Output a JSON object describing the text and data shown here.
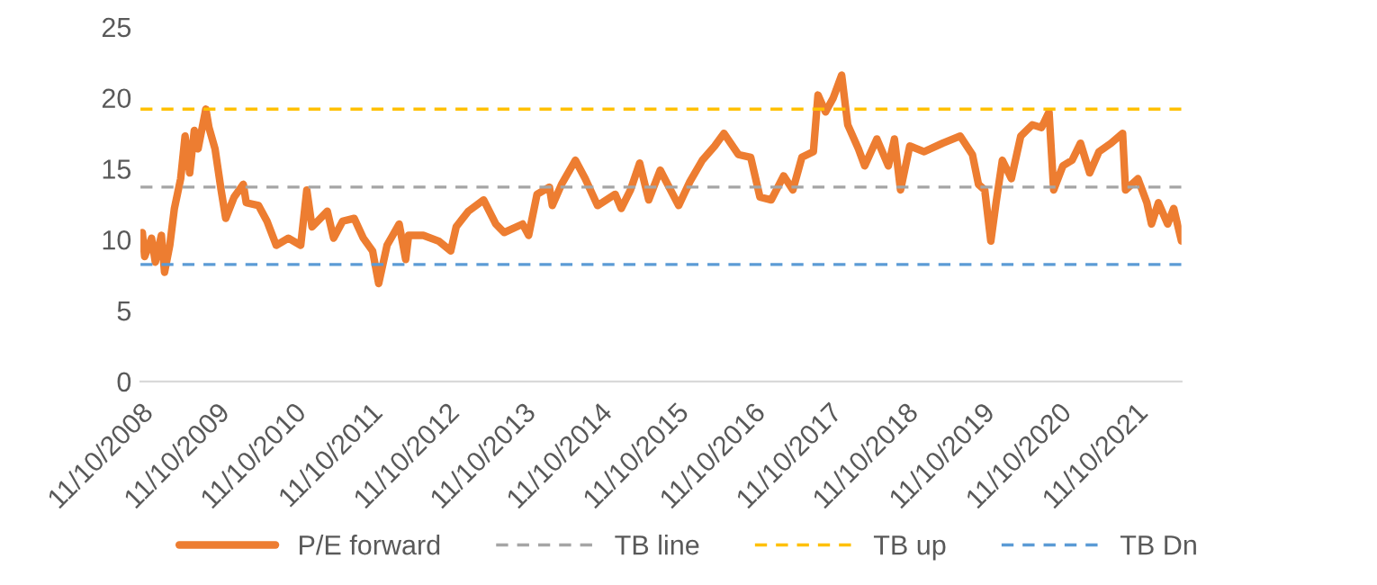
{
  "chart_data": {
    "type": "line",
    "x": [
      "2008-10-20",
      "2008-10-31",
      "2008-12-03",
      "2008-12-21",
      "2009-01-19",
      "2009-02-03",
      "2009-02-28",
      "2009-03-22",
      "2009-04-21",
      "2009-05-12",
      "2009-06-03",
      "2009-06-25",
      "2009-07-13",
      "2009-08-19",
      "2009-09-03",
      "2009-10-02",
      "2009-10-31",
      "2009-11-22",
      "2010-01-01",
      "2010-02-14",
      "2010-02-28",
      "2010-04-28",
      "2010-06-07",
      "2010-07-21",
      "2010-09-17",
      "2010-11-15",
      "2010-12-14",
      "2011-01-08",
      "2011-03-22",
      "2011-04-21",
      "2011-06-03",
      "2011-07-28",
      "2011-09-10",
      "2011-10-24",
      "2011-11-22",
      "2012-01-01",
      "2012-02-28",
      "2012-03-30",
      "2012-04-13",
      "2012-06-22",
      "2012-09-03",
      "2012-10-31",
      "2012-11-26",
      "2013-01-23",
      "2013-04-06",
      "2013-06-03",
      "2013-07-13",
      "2013-10-09",
      "2013-11-07",
      "2013-12-17",
      "2014-02-14",
      "2014-02-28",
      "2014-04-13",
      "2014-06-18",
      "2014-08-04",
      "2014-10-02",
      "2014-12-25",
      "2015-01-23",
      "2015-03-08",
      "2015-04-21",
      "2015-06-03",
      "2015-07-28",
      "2015-10-24",
      "2015-12-17",
      "2016-02-14",
      "2016-04-13",
      "2016-05-27",
      "2016-08-04",
      "2016-10-02",
      "2016-11-15",
      "2017-01-08",
      "2017-03-08",
      "2017-04-21",
      "2017-06-03",
      "2017-07-28",
      "2017-08-19",
      "2017-09-24",
      "2017-10-31",
      "2017-12-10",
      "2018-01-08",
      "2018-02-28",
      "2018-03-30",
      "2018-05-27",
      "2018-07-21",
      "2018-08-19",
      "2018-09-17",
      "2018-10-31",
      "2019-01-08",
      "2019-04-06",
      "2019-06-29",
      "2019-08-26",
      "2019-09-24",
      "2019-10-24",
      "2019-11-22",
      "2019-12-17",
      "2020-01-16",
      "2020-02-28",
      "2020-04-13",
      "2020-06-07",
      "2020-07-21",
      "2020-08-26",
      "2020-09-17",
      "2020-10-31",
      "2020-12-14",
      "2021-01-23",
      "2021-03-08",
      "2021-04-21",
      "2021-06-18",
      "2021-08-12",
      "2021-08-26",
      "2021-10-24",
      "2021-12-06",
      "2021-12-28",
      "2022-01-30",
      "2022-03-15",
      "2022-04-13",
      "2022-05-20"
    ],
    "series": [
      {
        "name": "P/E forward",
        "color": "#ed7d31",
        "values": [
          10.5,
          8.8,
          10.1,
          8.4,
          10.3,
          7.7,
          9.6,
          12.2,
          14.3,
          17.3,
          14.7,
          17.7,
          16.4,
          19.2,
          17.9,
          16.4,
          13.5,
          11.5,
          13.0,
          13.9,
          12.6,
          12.4,
          11.3,
          9.6,
          10.1,
          9.6,
          13.5,
          10.9,
          12.0,
          10.1,
          11.3,
          11.5,
          10.1,
          9.2,
          6.9,
          9.6,
          11.1,
          8.6,
          10.3,
          10.3,
          9.9,
          9.2,
          10.9,
          12.0,
          12.8,
          11.1,
          10.5,
          11.1,
          10.3,
          13.2,
          13.7,
          12.4,
          13.9,
          15.6,
          14.3,
          12.4,
          13.2,
          12.2,
          13.5,
          15.4,
          12.8,
          14.9,
          12.4,
          14.1,
          15.6,
          16.6,
          17.5,
          16.0,
          15.8,
          13.0,
          12.8,
          14.5,
          13.5,
          15.8,
          16.2,
          20.2,
          19.0,
          20.0,
          21.6,
          18.1,
          16.4,
          15.2,
          17.1,
          15.2,
          17.1,
          13.5,
          16.6,
          16.2,
          16.8,
          17.3,
          16.0,
          13.9,
          13.5,
          9.9,
          12.6,
          15.6,
          14.3,
          17.3,
          18.1,
          17.9,
          19.0,
          13.5,
          15.2,
          15.6,
          16.8,
          14.7,
          16.2,
          16.8,
          17.5,
          13.5,
          14.3,
          12.6,
          11.1,
          12.6,
          11.1,
          12.2,
          9.9
        ]
      }
    ],
    "ref_lines": [
      {
        "axis": "y",
        "value": 13.7,
        "label": "TB line",
        "color": "#a5a5a5",
        "line_style": "dashed"
      },
      {
        "axis": "y",
        "value": 19.2,
        "label": "TB up",
        "color": "#ffc000",
        "line_style": "dashed"
      },
      {
        "axis": "y",
        "value": 8.25,
        "label": "TB Dn",
        "color": "#5b9bd5",
        "line_style": "dashed"
      }
    ],
    "xlim": [
      "2008-10-11",
      "2022-05-20"
    ],
    "xticks": [
      {
        "value": "2008-10-11",
        "label": "11/10/2008"
      },
      {
        "value": "2009-10-11",
        "label": "11/10/2009"
      },
      {
        "value": "2010-10-11",
        "label": "11/10/2010"
      },
      {
        "value": "2011-10-11",
        "label": "11/10/2011"
      },
      {
        "value": "2012-10-11",
        "label": "11/10/2012"
      },
      {
        "value": "2013-10-11",
        "label": "11/10/2013"
      },
      {
        "value": "2014-10-11",
        "label": "11/10/2014"
      },
      {
        "value": "2015-10-11",
        "label": "11/10/2015"
      },
      {
        "value": "2016-10-11",
        "label": "11/10/2016"
      },
      {
        "value": "2017-10-11",
        "label": "11/10/2017"
      },
      {
        "value": "2018-10-11",
        "label": "11/10/2018"
      },
      {
        "value": "2019-10-11",
        "label": "11/10/2019"
      },
      {
        "value": "2020-10-11",
        "label": "11/10/2020"
      },
      {
        "value": "2021-10-11",
        "label": "11/10/2021"
      }
    ],
    "ylim": [
      0,
      25
    ],
    "yticks": [
      0,
      5,
      10,
      15,
      20,
      25
    ],
    "grid": false,
    "legend": "bottom",
    "line_style": "solid",
    "marker": "none"
  }
}
